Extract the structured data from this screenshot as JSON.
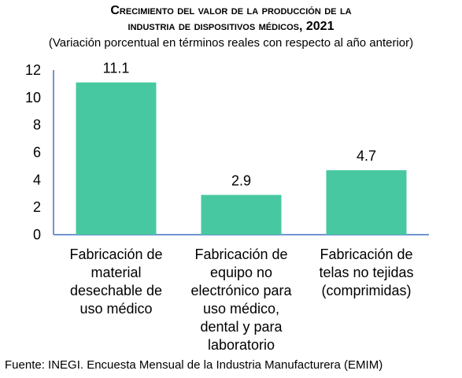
{
  "title_lines": [
    "Crecimiento del valor de la producción de la",
    "industria de dispositivos médicos, 2021"
  ],
  "subtitle": "(Variación porcentual en términos reales con respecto al año anterior)",
  "source": "Fuente: INEGI. Encuesta Mensual de la Industria Manufacturera (EMIM)",
  "colors": {
    "bar": "#47C8A0",
    "axis": "#4472C4"
  },
  "chart_data": {
    "type": "bar",
    "title": "Crecimiento del valor de la producción de la industria de dispositivos médicos, 2021",
    "subtitle": "(Variación porcentual en términos reales con respecto al año anterior)",
    "categories": [
      [
        "Fabricación de",
        "material",
        "desechable de",
        "uso médico"
      ],
      [
        "Fabricación de",
        "equipo no",
        "electrónico para",
        "uso médico,",
        "dental y para",
        "laboratorio"
      ],
      [
        "Fabricación de",
        "telas no tejidas",
        "(comprimidas)"
      ]
    ],
    "values": [
      11.1,
      2.9,
      4.7
    ],
    "data_labels": [
      "11.1",
      "2.9",
      "4.7"
    ],
    "yticks": [
      "0",
      "2",
      "4",
      "6",
      "8",
      "10",
      "12"
    ],
    "ylim": [
      0,
      12
    ],
    "grid": false,
    "legend": "none"
  }
}
